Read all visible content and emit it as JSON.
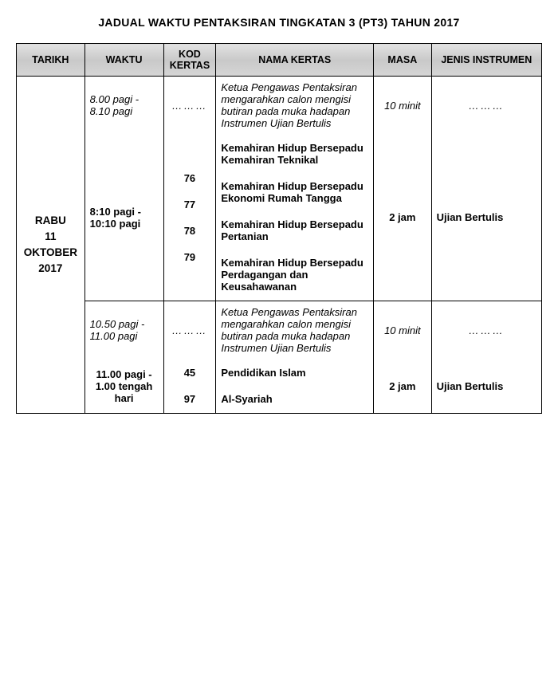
{
  "title": "JADUAL WAKTU PENTAKSIRAN TINGKATAN 3 (PT3) TAHUN 2017",
  "headers": {
    "tarikh": "TARIKH",
    "waktu": "WAKTU",
    "kod": "KOD KERTAS",
    "nama": "NAMA KERTAS",
    "masa": "MASA",
    "jenis": "JENIS INSTRUMEN"
  },
  "date": {
    "day": "RABU",
    "full": "11 OKTOBER",
    "year": "2017"
  },
  "block1": {
    "waktu1": "8.00 pagi - 8.10 pagi",
    "kod1": "………",
    "nama1": "Ketua Pengawas Pentaksiran mengarahkan calon mengisi butiran pada muka hadapan Instrumen Ujian Bertulis",
    "masa1": "10 minit",
    "jenis1": "………",
    "waktu2": "8:10 pagi - 10:10 pagi",
    "k76": "76",
    "n76": "Kemahiran Hidup Bersepadu Kemahiran Teknikal",
    "k77": "77",
    "n77": "Kemahiran Hidup Bersepadu Ekonomi Rumah Tangga",
    "k78": "78",
    "n78": "Kemahiran Hidup Bersepadu Pertanian",
    "k79": "79",
    "n79": "Kemahiran Hidup Bersepadu Perdagangan dan Keusahawanan",
    "masa2": "2 jam",
    "jenis2": "Ujian Bertulis"
  },
  "block2": {
    "waktu1": "10.50 pagi - 11.00 pagi",
    "kod1": "………",
    "nama1": "Ketua Pengawas Pentaksiran mengarahkan calon mengisi butiran pada muka hadapan Instrumen Ujian Bertulis",
    "masa1": "10 minit",
    "jenis1": "………",
    "waktu2": "11.00 pagi - 1.00 tengah hari",
    "k45": "45",
    "n45": "Pendidikan Islam",
    "k97": "97",
    "n97": "Al-Syariah",
    "masa2": "2 jam",
    "jenis2": "Ujian Bertulis"
  }
}
